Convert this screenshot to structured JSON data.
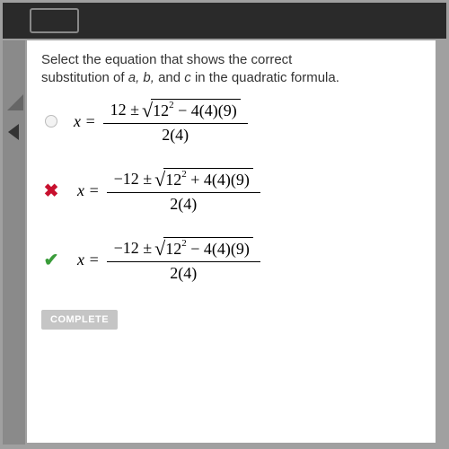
{
  "prompt": {
    "line1": "Select the equation that shows the correct",
    "line2_a": "substitution of ",
    "line2_vars": "a, b, ",
    "line2_and": "and ",
    "line2_c": "c ",
    "line2_end": "in the quadratic formula."
  },
  "options": [
    {
      "marker_type": "empty",
      "marker_symbol": "",
      "lhs": "x =",
      "num_lead": "12 ±",
      "rad_a": "12",
      "rad_exp": "2",
      "rad_rest": " − 4(4)(9)",
      "den": "2(4)"
    },
    {
      "marker_type": "wrong",
      "marker_symbol": "✖",
      "lhs": "x =",
      "num_lead": "−12 ±",
      "rad_a": "12",
      "rad_exp": "2",
      "rad_rest": " + 4(4)(9)",
      "den": "2(4)"
    },
    {
      "marker_type": "correct",
      "marker_symbol": "✔",
      "lhs": "x =",
      "num_lead": "−12 ±",
      "rad_a": "12",
      "rad_exp": "2",
      "rad_rest": " − 4(4)(9)",
      "den": "2(4)"
    }
  ],
  "complete_label": "COMPLETE",
  "colors": {
    "wrong": "#c8102e",
    "correct": "#3a9c3a",
    "panel_bg": "#ffffff",
    "outer_bg": "#a0a0a0"
  }
}
